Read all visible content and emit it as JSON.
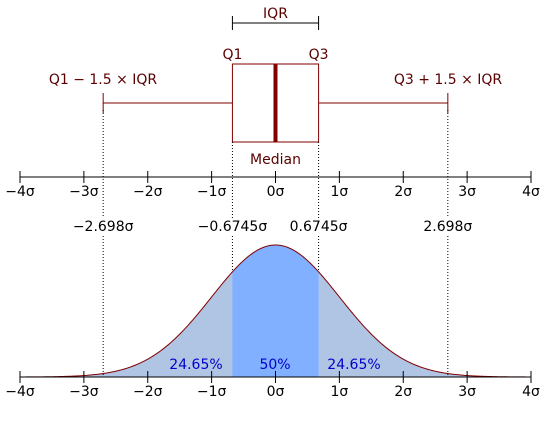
{
  "boxplot": {
    "iqr_label": "IQR",
    "q1_label": "Q1",
    "q3_label": "Q3",
    "median_label": "Median",
    "lower_whisker_label": "Q1 − 1.5 × IQR",
    "upper_whisker_label": "Q3 + 1.5 × IQR",
    "q1": -0.6745,
    "median": 0,
    "q3": 0.6745,
    "lower_whisker": -2.698,
    "upper_whisker": 2.698
  },
  "axis": {
    "min": -4,
    "max": 4,
    "ticks": [
      "−4σ",
      "−3σ",
      "−2σ",
      "−1σ",
      "0σ",
      "1σ",
      "2σ",
      "3σ",
      "4σ"
    ]
  },
  "markers": [
    {
      "value": -2.698,
      "label": "−2.698σ"
    },
    {
      "value": -0.6745,
      "label": "−0.6745σ"
    },
    {
      "value": 0.6745,
      "label": "0.6745σ"
    },
    {
      "value": 2.698,
      "label": "2.698σ"
    }
  ],
  "regions": {
    "left_pct": "24.65%",
    "middle_pct": "50%",
    "right_pct": "24.65%"
  },
  "colors": {
    "outline": "#800000",
    "tails_fill": "#b0c4e4",
    "center_fill": "#80b0ff",
    "pct_text": "#0000cc",
    "dark_text": "#5a0000"
  }
}
